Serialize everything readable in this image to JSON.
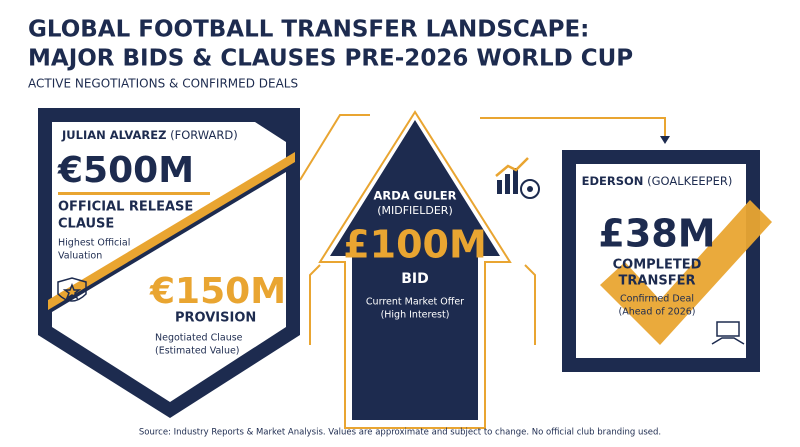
{
  "header": {
    "title_lines": [
      "GLOBAL FOOTBALL TRANSFER LANDSCAPE:",
      "MAJOR BIDS & CLAUSES PRE-2026 WORLD CUP"
    ],
    "subtitle": "ACTIVE NEGOTIATIONS & CONFIRMED DEALS"
  },
  "cards": [
    {
      "player": "JULIAN ALVAREZ",
      "position": "(FORWARD)",
      "amount": "€500M",
      "label_lines": [
        "OFFICIAL RELEASE",
        "CLAUSE"
      ],
      "note_lines": [
        "Highest Official",
        "Valuation"
      ],
      "secondary": {
        "amount": "€150M",
        "label": "PROVISION",
        "note_lines": [
          "Negotiated Clause",
          "(Estimated Value)"
        ]
      }
    },
    {
      "player": "ARDA GULER",
      "position": "(MIDFIELDER)",
      "amount": "£100M",
      "label": "BID",
      "note_lines": [
        "Current Market Offer",
        "(High Interest)"
      ]
    },
    {
      "player": "EDERSON",
      "position": "(GOALKEEPER)",
      "amount": "£38M",
      "label_lines": [
        "COMPLETED",
        "TRANSFER"
      ],
      "note_lines": [
        "Confirmed Deal",
        "(Ahead of 2026)"
      ]
    }
  ],
  "footer": "Source: Industry Reports & Market Analysis. Values are approximate and subject to change. No official club branding used."
}
